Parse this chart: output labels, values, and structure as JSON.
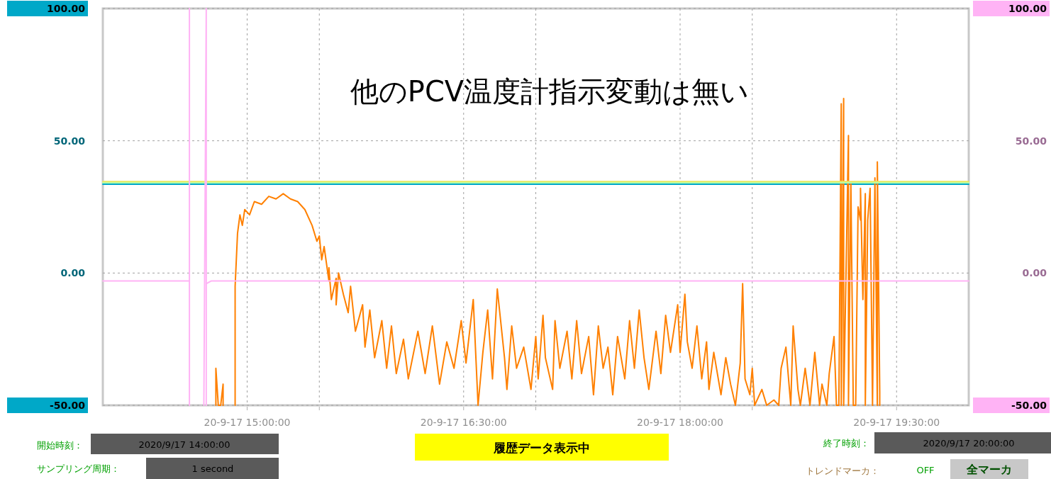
{
  "chart_data": {
    "type": "line",
    "title": "他のPCV温度計指示変動は無い",
    "xlim": [
      "2020-09-17T14:00",
      "2020-09-17T20:00"
    ],
    "xticks": [
      {
        "value": "2020-09-17T15:00",
        "label": "20-9-17 15:00:00"
      },
      {
        "value": "2020-09-17T15:30",
        "label": null
      },
      {
        "value": "2020-09-17T16:30",
        "label": "20-9-17 16:30:00"
      },
      {
        "value": "2020-09-17T17:00",
        "label": null
      },
      {
        "value": "2020-09-17T18:00",
        "label": "20-9-17 18:00:00"
      },
      {
        "value": "2020-09-17T18:30",
        "label": null
      },
      {
        "value": "2020-09-17T19:30",
        "label": "20-9-17 19:30:00"
      }
    ],
    "ylim": [
      -50,
      100
    ],
    "yticks": [
      {
        "value": -50,
        "label": "-50.00"
      },
      {
        "value": 0,
        "label": "0.00"
      },
      {
        "value": 50,
        "label": "50.00"
      },
      {
        "value": 100,
        "label": "100.00"
      }
    ],
    "y2lim": [
      -50,
      100
    ],
    "y2ticks": [
      {
        "value": -50,
        "label": "-50.00"
      },
      {
        "value": 0,
        "label": "0.00"
      },
      {
        "value": 50,
        "label": "50.00"
      },
      {
        "value": 100,
        "label": "100.00"
      }
    ],
    "grid": true,
    "series": [
      {
        "color": "#00a8c8",
        "x": [
          "2020-09-17T14:00",
          "2020-09-17T20:00"
        ],
        "values": [
          33.6,
          33.6
        ]
      },
      {
        "color": "#ff8000",
        "x": [
          "2020-09-17T14:47",
          "2020-09-17T14:47",
          "2020-09-17T14:48",
          "2020-09-17T14:49",
          "2020-09-17T14:50",
          "2020-09-17T14:50",
          "2020-09-17T14:52",
          "2020-09-17T14:55",
          "2020-09-17T14:55",
          "2020-09-17T14:56",
          "2020-09-17T14:57",
          "2020-09-17T14:58",
          "2020-09-17T14:59",
          "2020-09-17T15:01",
          "2020-09-17T15:03",
          "2020-09-17T15:06",
          "2020-09-17T15:09",
          "2020-09-17T15:12",
          "2020-09-17T15:15",
          "2020-09-17T15:18",
          "2020-09-17T15:21",
          "2020-09-17T15:24",
          "2020-09-17T15:27",
          "2020-09-17T15:29",
          "2020-09-17T15:30",
          "2020-09-17T15:31",
          "2020-09-17T15:32",
          "2020-09-17T15:34",
          "2020-09-17T15:34",
          "2020-09-17T15:35",
          "2020-09-17T15:37",
          "2020-09-17T15:37",
          "2020-09-17T15:38",
          "2020-09-17T15:40",
          "2020-09-17T15:42",
          "2020-09-17T15:43",
          "2020-09-17T15:45",
          "2020-09-17T15:48",
          "2020-09-17T15:49",
          "2020-09-17T15:51",
          "2020-09-17T15:53",
          "2020-09-17T15:56",
          "2020-09-17T15:58",
          "2020-09-17T16:00",
          "2020-09-17T16:02",
          "2020-09-17T16:05",
          "2020-09-17T16:07",
          "2020-09-17T16:11",
          "2020-09-17T16:14",
          "2020-09-17T16:17",
          "2020-09-17T16:20",
          "2020-09-17T16:23",
          "2020-09-17T16:26",
          "2020-09-17T16:29",
          "2020-09-17T16:31",
          "2020-09-17T16:34",
          "2020-09-17T16:36",
          "2020-09-17T16:38",
          "2020-09-17T16:40",
          "2020-09-17T16:42",
          "2020-09-17T16:44",
          "2020-09-17T16:47",
          "2020-09-17T16:48",
          "2020-09-17T16:50",
          "2020-09-17T16:52",
          "2020-09-17T16:55",
          "2020-09-17T16:58",
          "2020-09-17T17:00",
          "2020-09-17T17:01",
          "2020-09-17T17:03",
          "2020-09-17T17:04",
          "2020-09-17T17:07",
          "2020-09-17T17:08",
          "2020-09-17T17:10",
          "2020-09-17T17:13",
          "2020-09-17T17:15",
          "2020-09-17T17:17",
          "2020-09-17T17:19",
          "2020-09-17T17:22",
          "2020-09-17T17:24",
          "2020-09-17T17:26",
          "2020-09-17T17:28",
          "2020-09-17T17:30",
          "2020-09-17T17:32",
          "2020-09-17T17:34",
          "2020-09-17T17:37",
          "2020-09-17T17:39",
          "2020-09-17T17:41",
          "2020-09-17T17:43",
          "2020-09-17T17:45",
          "2020-09-17T17:47",
          "2020-09-17T17:50",
          "2020-09-17T17:52",
          "2020-09-17T17:54",
          "2020-09-17T17:56",
          "2020-09-17T17:59",
          "2020-09-17T18:00",
          "2020-09-17T18:02",
          "2020-09-17T18:03",
          "2020-09-17T18:05",
          "2020-09-17T18:07",
          "2020-09-17T18:09",
          "2020-09-17T18:11",
          "2020-09-17T18:12",
          "2020-09-17T18:14",
          "2020-09-17T18:17",
          "2020-09-17T18:19",
          "2020-09-17T18:21",
          "2020-09-17T18:23",
          "2020-09-17T18:25",
          "2020-09-17T18:26",
          "2020-09-17T18:27",
          "2020-09-17T18:29",
          "2020-09-17T18:30",
          "2020-09-17T18:31",
          "2020-09-17T18:34",
          "2020-09-17T18:36",
          "2020-09-17T18:39",
          "2020-09-17T18:41",
          "2020-09-17T18:42",
          "2020-09-17T18:44",
          "2020-09-17T18:46",
          "2020-09-17T18:47",
          "2020-09-17T18:49",
          "2020-09-17T18:50",
          "2020-09-17T18:52",
          "2020-09-17T18:54",
          "2020-09-17T18:56",
          "2020-09-17T18:58",
          "2020-09-17T18:59",
          "2020-09-17T19:01",
          "2020-09-17T19:02",
          "2020-09-17T19:04",
          "2020-09-17T19:05",
          "2020-09-17T19:06",
          "2020-09-17T19:07",
          "2020-09-17T19:07",
          "2020-09-17T19:08",
          "2020-09-17T19:08",
          "2020-09-17T19:10",
          "2020-09-17T19:10",
          "2020-09-17T19:11",
          "2020-09-17T19:12",
          "2020-09-17T19:13",
          "2020-09-17T19:14",
          "2020-09-17T19:15",
          "2020-09-17T19:15",
          "2020-09-17T19:16",
          "2020-09-17T19:17",
          "2020-09-17T19:17",
          "2020-09-17T19:18",
          "2020-09-17T19:19",
          "2020-09-17T19:20",
          "2020-09-17T19:21",
          "2020-09-17T19:22",
          "2020-09-17T19:22",
          "2020-09-17T19:23",
          "2020-09-17T19:23"
        ],
        "values": [
          -50,
          -36,
          -50,
          -50,
          -42,
          -50,
          null,
          -50,
          -5,
          15,
          22,
          18,
          24,
          22,
          27,
          26,
          29,
          28,
          30,
          28,
          27,
          24,
          18,
          12,
          14,
          5,
          10,
          -3,
          2,
          -10,
          -2,
          -12,
          0,
          -8,
          -15,
          -5,
          -22,
          -12,
          -28,
          -14,
          -32,
          -18,
          -36,
          -20,
          -38,
          -25,
          -40,
          -22,
          -38,
          -20,
          -42,
          -26,
          -36,
          -18,
          -34,
          -10,
          -50,
          -30,
          -14,
          -40,
          -6,
          -32,
          -44,
          -20,
          -36,
          -28,
          -44,
          -24,
          -40,
          -16,
          -32,
          -44,
          -18,
          -36,
          -22,
          -40,
          -18,
          -38,
          -24,
          -46,
          -20,
          -36,
          -28,
          -46,
          -24,
          -40,
          -18,
          -36,
          -14,
          -32,
          -44,
          -22,
          -38,
          -16,
          -30,
          -12,
          -30,
          -8,
          -26,
          -36,
          -20,
          -40,
          -26,
          -44,
          -30,
          -46,
          -32,
          -42,
          -50,
          -34,
          -4,
          -40,
          -46,
          -36,
          -50,
          -44,
          -50,
          -48,
          -50,
          -36,
          -28,
          -50,
          -20,
          -44,
          -50,
          -36,
          -50,
          -30,
          -50,
          -42,
          -50,
          -38,
          -24,
          -50,
          -50,
          64,
          -50,
          66,
          -50,
          52,
          -50,
          34,
          -50,
          -50,
          25,
          20,
          32,
          -10,
          30,
          -50,
          20,
          32,
          -50,
          36,
          -50,
          42,
          -45,
          -50
        ]
      },
      {
        "color": "#b0ffb0",
        "x": [
          "2020-09-17T14:00",
          "2020-09-17T20:00"
        ],
        "values": [
          34.1,
          34.1
        ]
      },
      {
        "color": "#e8e860",
        "x": [
          "2020-09-17T14:00",
          "2020-09-17T20:00"
        ],
        "values": [
          34.6,
          34.6
        ]
      },
      {
        "color": "#ffb3f5",
        "axis": "y2",
        "x": [
          "2020-09-17T14:00",
          "2020-09-17T14:36",
          "2020-09-17T14:36",
          "2020-09-17T14:36",
          "2020-09-17T14:39",
          "2020-09-17T14:42",
          "2020-09-17T14:43",
          "2020-09-17T14:43",
          "2020-09-17T14:43",
          "2020-09-17T14:45",
          "2020-09-17T20:00"
        ],
        "values": [
          -3,
          -3,
          100,
          -50,
          null,
          -50,
          100,
          -50,
          -4,
          -3,
          -3
        ]
      }
    ],
    "annotations": [
      "開始時刻：",
      "2020/9/17 14:00:00",
      "サンプリング周期：",
      "1 second",
      "履歴データ表示中",
      "終了時刻：",
      "2020/9/17 20:00:00",
      "トレンドマーカ：",
      "OFF",
      "全マーカ"
    ]
  }
}
